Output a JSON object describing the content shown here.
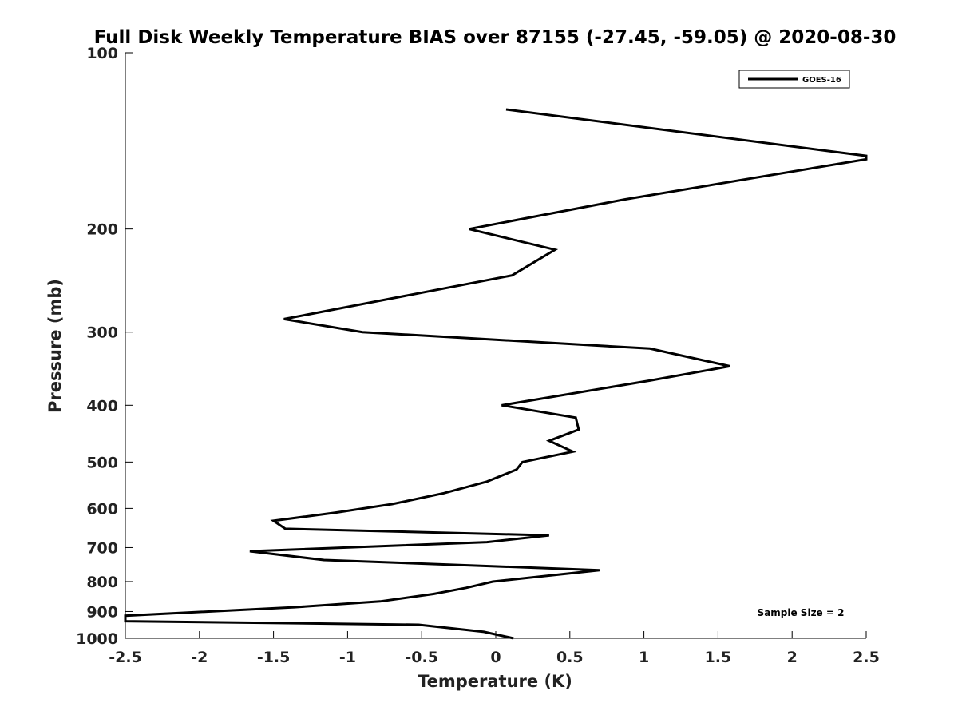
{
  "chart_data": {
    "type": "line",
    "title": "Full Disk Weekly Temperature BIAS over 87155 (-27.45, -59.05) @ 2020-08-30",
    "xlabel": "Temperature (K)",
    "ylabel": "Pressure (mb)",
    "xlim": [
      -2.5,
      2.5
    ],
    "ylim": [
      1000,
      100
    ],
    "yscale": "log",
    "xticks": [
      -2.5,
      -2,
      -1.5,
      -1,
      -0.5,
      0,
      0.5,
      1,
      1.5,
      2,
      2.5
    ],
    "xtick_labels": [
      "-2.5",
      "-2",
      "-1.5",
      "-1",
      "-0.5",
      "0",
      "0.5",
      "1",
      "1.5",
      "2",
      "2.5"
    ],
    "yticks": [
      100,
      200,
      300,
      400,
      500,
      600,
      700,
      800,
      900,
      1000
    ],
    "ytick_labels": [
      "100",
      "200",
      "300",
      "400",
      "500",
      "600",
      "700",
      "800",
      "900",
      "1000"
    ],
    "grid": false,
    "legend_position": "top-right",
    "series": [
      {
        "name": "GOES-16",
        "color": "#000000",
        "points": [
          {
            "x": 0.07,
            "y": 125
          },
          {
            "x": 2.5,
            "y": 150
          },
          {
            "x": 2.5,
            "y": 152
          },
          {
            "x": 0.87,
            "y": 178
          },
          {
            "x": -0.18,
            "y": 200
          },
          {
            "x": 0.4,
            "y": 217
          },
          {
            "x": 0.11,
            "y": 240
          },
          {
            "x": -1.43,
            "y": 285
          },
          {
            "x": -0.9,
            "y": 300
          },
          {
            "x": 1.04,
            "y": 320
          },
          {
            "x": 1.58,
            "y": 343
          },
          {
            "x": 1.04,
            "y": 363
          },
          {
            "x": 0.04,
            "y": 400
          },
          {
            "x": 0.54,
            "y": 420
          },
          {
            "x": 0.56,
            "y": 440
          },
          {
            "x": 0.36,
            "y": 460
          },
          {
            "x": 0.52,
            "y": 480
          },
          {
            "x": 0.18,
            "y": 500
          },
          {
            "x": 0.14,
            "y": 515
          },
          {
            "x": -0.06,
            "y": 540
          },
          {
            "x": -0.35,
            "y": 565
          },
          {
            "x": -0.7,
            "y": 590
          },
          {
            "x": -1.08,
            "y": 610
          },
          {
            "x": -1.5,
            "y": 630
          },
          {
            "x": -1.42,
            "y": 650
          },
          {
            "x": 0.36,
            "y": 667
          },
          {
            "x": -0.06,
            "y": 685
          },
          {
            "x": -1.66,
            "y": 710
          },
          {
            "x": -1.16,
            "y": 735
          },
          {
            "x": 0.7,
            "y": 765
          },
          {
            "x": -0.02,
            "y": 800
          },
          {
            "x": -0.2,
            "y": 820
          },
          {
            "x": -0.42,
            "y": 840
          },
          {
            "x": -0.78,
            "y": 865
          },
          {
            "x": -1.36,
            "y": 885
          },
          {
            "x": -2.5,
            "y": 915
          },
          {
            "x": -2.5,
            "y": 935
          },
          {
            "x": -0.52,
            "y": 948
          },
          {
            "x": -0.08,
            "y": 975
          },
          {
            "x": 0.12,
            "y": 1000
          }
        ]
      }
    ],
    "annotations": [
      {
        "text": "Sample Size = 2",
        "position": "bottom-right"
      }
    ]
  }
}
